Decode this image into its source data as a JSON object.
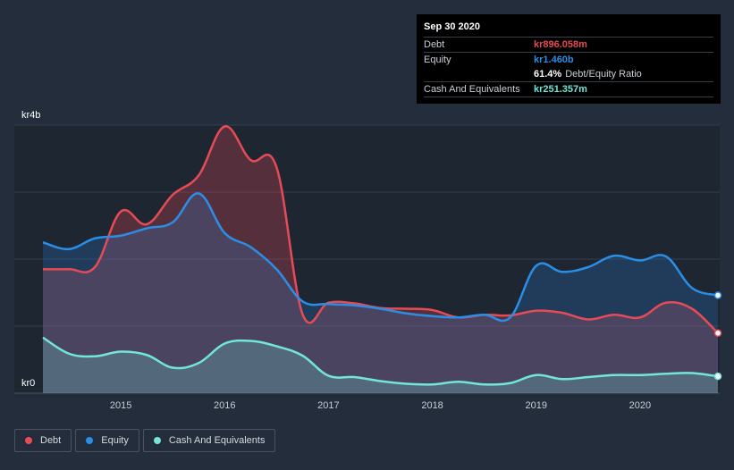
{
  "chart_data": {
    "type": "area",
    "ylabel_top": "kr4b",
    "ylabel_bottom": "kr0",
    "ylim": [
      0,
      4000
    ],
    "xlim": [
      2014.25,
      2020.75
    ],
    "x_ticks": [
      {
        "value": 2015,
        "label": "2015"
      },
      {
        "value": 2016,
        "label": "2016"
      },
      {
        "value": 2017,
        "label": "2017"
      },
      {
        "value": 2018,
        "label": "2018"
      },
      {
        "value": 2019,
        "label": "2019"
      },
      {
        "value": 2020,
        "label": "2020"
      }
    ],
    "series": [
      {
        "name": "Debt",
        "color": "#e64b56",
        "x": [
          2014.25,
          2014.5,
          2014.75,
          2015.0,
          2015.25,
          2015.5,
          2015.75,
          2016.0,
          2016.25,
          2016.5,
          2016.75,
          2017.0,
          2017.25,
          2017.5,
          2017.75,
          2018.0,
          2018.25,
          2018.5,
          2018.75,
          2019.0,
          2019.25,
          2019.5,
          2019.75,
          2020.0,
          2020.25,
          2020.5,
          2020.75
        ],
        "values": [
          1850,
          1850,
          1880,
          2710,
          2520,
          2960,
          3250,
          3980,
          3480,
          3370,
          1180,
          1350,
          1340,
          1270,
          1260,
          1240,
          1130,
          1170,
          1160,
          1230,
          1200,
          1100,
          1170,
          1130,
          1350,
          1260,
          896
        ]
      },
      {
        "name": "Equity",
        "color": "#2b8ee6",
        "x": [
          2014.25,
          2014.5,
          2014.75,
          2015.0,
          2015.25,
          2015.5,
          2015.75,
          2016.0,
          2016.25,
          2016.5,
          2016.75,
          2017.0,
          2017.25,
          2017.5,
          2017.75,
          2018.0,
          2018.25,
          2018.5,
          2018.75,
          2019.0,
          2019.25,
          2019.5,
          2019.75,
          2020.0,
          2020.25,
          2020.5,
          2020.75
        ],
        "values": [
          2250,
          2150,
          2310,
          2350,
          2460,
          2550,
          2980,
          2390,
          2180,
          1850,
          1370,
          1330,
          1310,
          1260,
          1190,
          1150,
          1130,
          1170,
          1130,
          1900,
          1810,
          1880,
          2050,
          1980,
          2040,
          1570,
          1460
        ]
      },
      {
        "name": "Cash And Equivalents",
        "color": "#72e6d8",
        "x": [
          2014.25,
          2014.5,
          2014.75,
          2015.0,
          2015.25,
          2015.5,
          2015.75,
          2016.0,
          2016.25,
          2016.5,
          2016.75,
          2017.0,
          2017.25,
          2017.5,
          2017.75,
          2018.0,
          2018.25,
          2018.5,
          2018.75,
          2019.0,
          2019.25,
          2019.5,
          2019.75,
          2020.0,
          2020.25,
          2020.5,
          2020.75
        ],
        "values": [
          830,
          590,
          550,
          620,
          570,
          380,
          450,
          740,
          780,
          700,
          560,
          260,
          240,
          180,
          140,
          130,
          170,
          130,
          150,
          270,
          210,
          240,
          270,
          270,
          290,
          300,
          251
        ]
      }
    ]
  },
  "tooltip": {
    "date": "Sep 30 2020",
    "debt_label": "Debt",
    "debt_value": "kr896.058m",
    "equity_label": "Equity",
    "equity_value": "kr1.460b",
    "ratio_value": "61.4%",
    "ratio_label": "Debt/Equity Ratio",
    "cash_label": "Cash And Equivalents",
    "cash_value": "kr251.357m"
  },
  "legend": [
    {
      "label": "Debt",
      "color": "#e64b56"
    },
    {
      "label": "Equity",
      "color": "#2b8ee6"
    },
    {
      "label": "Cash And Equivalents",
      "color": "#72e6d8"
    }
  ],
  "colors": {
    "background": "#232d3b",
    "plot_background": "#1e2632",
    "debt": "#e64b56",
    "equity": "#2b8ee6",
    "cash": "#72e6d8"
  }
}
